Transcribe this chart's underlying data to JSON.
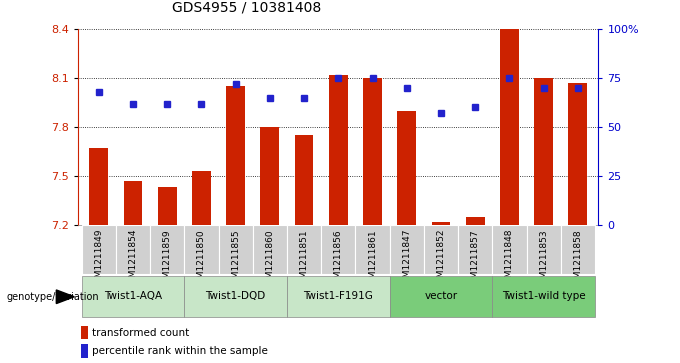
{
  "title": "GDS4955 / 10381408",
  "samples": [
    "GSM1211849",
    "GSM1211854",
    "GSM1211859",
    "GSM1211850",
    "GSM1211855",
    "GSM1211860",
    "GSM1211851",
    "GSM1211856",
    "GSM1211861",
    "GSM1211847",
    "GSM1211852",
    "GSM1211857",
    "GSM1211848",
    "GSM1211853",
    "GSM1211858"
  ],
  "bar_values": [
    7.67,
    7.47,
    7.43,
    7.53,
    8.05,
    7.8,
    7.75,
    8.12,
    8.1,
    7.9,
    7.22,
    7.25,
    8.4,
    8.1,
    8.07
  ],
  "percentile_values": [
    68,
    62,
    62,
    62,
    72,
    65,
    65,
    75,
    75,
    70,
    57,
    60,
    75,
    70,
    70
  ],
  "y_min": 7.2,
  "y_max": 8.4,
  "y_ticks": [
    7.2,
    7.5,
    7.8,
    8.1,
    8.4
  ],
  "right_y_ticks": [
    0,
    25,
    50,
    75,
    100
  ],
  "right_y_labels": [
    "0",
    "25",
    "50",
    "75",
    "100%"
  ],
  "groups": [
    {
      "label": "Twist1-AQA",
      "start": 0,
      "end": 3,
      "color": "#d4edda"
    },
    {
      "label": "Twist1-DQD",
      "start": 3,
      "end": 6,
      "color": "#d4edda"
    },
    {
      "label": "Twist1-F191G",
      "start": 6,
      "end": 9,
      "color": "#d4edda"
    },
    {
      "label": "vector",
      "start": 9,
      "end": 12,
      "color": "#90ee90"
    },
    {
      "label": "Twist1-wild type",
      "start": 12,
      "end": 15,
      "color": "#90ee90"
    }
  ],
  "bar_color": "#cc2200",
  "dot_color": "#2222cc",
  "bg_color": "#ffffff",
  "bar_width": 0.55,
  "ylabel_color": "#cc2200",
  "right_label_color": "#0000cc",
  "light_green": "#c8e6c8",
  "bright_green": "#7acc7a",
  "gray_box": "#d0d0d0"
}
